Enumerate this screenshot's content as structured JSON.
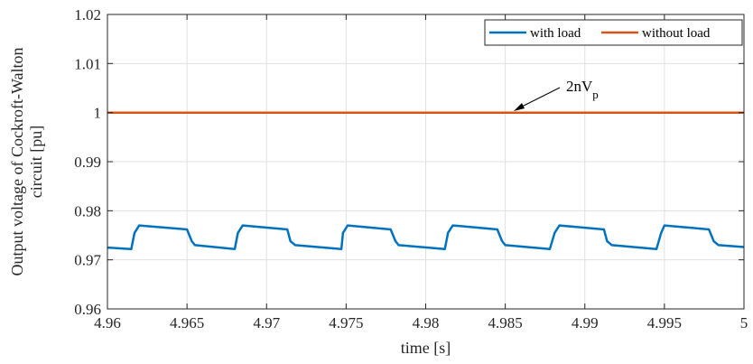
{
  "chart_data": {
    "type": "line",
    "xlabel": "time [s]",
    "ylabel_line1": "Output voltage of Cockroft-Walton",
    "ylabel_line2": "circuit [pu]",
    "xlim": [
      4.96,
      5.0
    ],
    "ylim": [
      0.96,
      1.02
    ],
    "x_ticks": [
      4.96,
      4.965,
      4.97,
      4.975,
      4.98,
      4.985,
      4.99,
      4.995,
      5.0
    ],
    "x_tick_labels": [
      "4.96",
      "4.965",
      "4.97",
      "4.975",
      "4.98",
      "4.985",
      "4.99",
      "4.995",
      "5"
    ],
    "y_ticks": [
      0.96,
      0.97,
      0.98,
      0.99,
      1.0,
      1.01,
      1.02
    ],
    "y_tick_labels": [
      "0.96",
      "0.97",
      "0.98",
      "0.99",
      "1",
      "1.01",
      "1.02"
    ],
    "grid": true,
    "legend_position": "top-right",
    "series": [
      {
        "name": "with load",
        "color": "#0072BD",
        "x": [
          4.96,
          4.9615,
          4.9617,
          4.962,
          4.965,
          4.9653,
          4.9655,
          4.968,
          4.9682,
          4.9685,
          4.9713,
          4.9715,
          4.9718,
          4.9747,
          4.9748,
          4.9751,
          4.9778,
          4.9781,
          4.9783,
          4.9812,
          4.9814,
          4.9817,
          4.9845,
          4.9848,
          4.985,
          4.9878,
          4.9881,
          4.9884,
          4.9912,
          4.9914,
          4.9917,
          4.9945,
          4.9948,
          4.995,
          4.9978,
          4.9981,
          4.9984,
          5.0
        ],
        "y": [
          0.9725,
          0.9722,
          0.9755,
          0.977,
          0.9762,
          0.9738,
          0.973,
          0.9722,
          0.9755,
          0.977,
          0.9762,
          0.9738,
          0.973,
          0.9722,
          0.9755,
          0.977,
          0.9762,
          0.9738,
          0.973,
          0.9722,
          0.9755,
          0.977,
          0.9762,
          0.9738,
          0.973,
          0.9722,
          0.9755,
          0.977,
          0.9762,
          0.9738,
          0.973,
          0.9722,
          0.9755,
          0.977,
          0.9762,
          0.9738,
          0.973,
          0.9726
        ]
      },
      {
        "name": "without load",
        "color": "#D95319",
        "x": [
          4.96,
          5.0
        ],
        "y": [
          1.0,
          1.0
        ]
      }
    ],
    "annotations": [
      {
        "text_main": "2nV",
        "text_sub": "p",
        "arrow_to_x": 4.985,
        "arrow_to_y": 1.0
      }
    ]
  }
}
